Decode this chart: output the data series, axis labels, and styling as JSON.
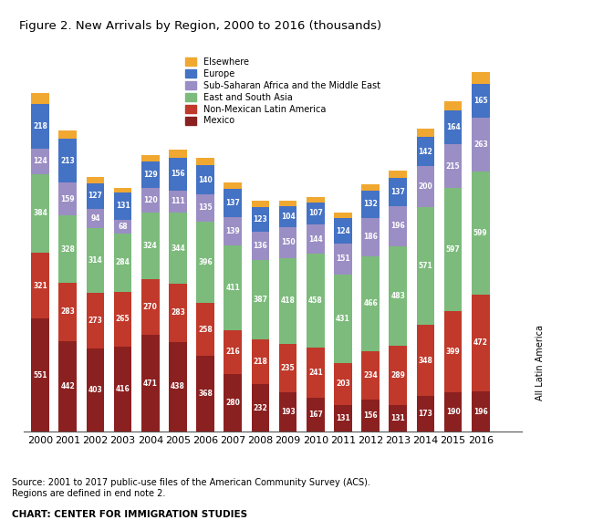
{
  "title": "Figure 2. New Arrivals by Region, 2000 to 2016 (thousands)",
  "years": [
    2000,
    2001,
    2002,
    2003,
    2004,
    2005,
    2006,
    2007,
    2008,
    2009,
    2010,
    2011,
    2012,
    2013,
    2014,
    2015,
    2016
  ],
  "mexico": [
    551,
    442,
    403,
    416,
    471,
    438,
    368,
    280,
    232,
    193,
    167,
    131,
    156,
    131,
    173,
    190,
    196
  ],
  "nonmex_latin": [
    321,
    283,
    273,
    265,
    270,
    283,
    258,
    216,
    218,
    235,
    241,
    203,
    234,
    289,
    348,
    399,
    472
  ],
  "east_south_asia": [
    384,
    328,
    314,
    284,
    324,
    344,
    396,
    411,
    387,
    418,
    458,
    431,
    466,
    483,
    571,
    597,
    599
  ],
  "subsaharan_mideast": [
    124,
    159,
    94,
    68,
    120,
    111,
    135,
    139,
    136,
    150,
    144,
    151,
    186,
    196,
    200,
    215,
    263
  ],
  "europe": [
    218,
    213,
    127,
    131,
    129,
    156,
    140,
    137,
    123,
    104,
    107,
    124,
    132,
    137,
    142,
    164,
    165
  ],
  "elsewhere": [
    50,
    40,
    30,
    25,
    35,
    40,
    35,
    30,
    28,
    25,
    25,
    25,
    30,
    35,
    40,
    45,
    55
  ],
  "colors": {
    "mexico": "#8B2020",
    "nonmex_latin": "#C0392B",
    "east_south_asia": "#7CBB7C",
    "subsaharan_mideast": "#9B8EC4",
    "europe": "#4472C4",
    "elsewhere": "#F0A830"
  },
  "legend_labels": [
    "Elsewhere",
    "Europe",
    "Sub-Saharan Africa and the Middle East",
    "East and South Asia",
    "Non-Mexican Latin America",
    "Mexico"
  ],
  "source_text": "Source: 2001 to 2017 public-use files of the American Community Survey (ACS).\nRegions are defined in end note 2.",
  "chart_credit": "CHART: CENTER FOR IMMIGRATION STUDIES",
  "brace_label": "All Latin America"
}
